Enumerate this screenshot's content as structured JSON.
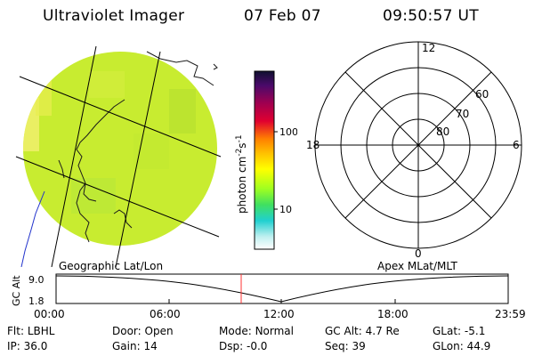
{
  "header": {
    "title": "Ultraviolet Imager",
    "date": "07 Feb 07",
    "time": "09:50:57 UT"
  },
  "colors": {
    "earth_disk": "#c8ec30",
    "earth_speckle": "#e8ee50",
    "bright_patch": "#f2f070",
    "coast": "#1a1a1a",
    "river": "#2233cc",
    "track_marker": "#ff3333"
  },
  "colorbar": {
    "label": "photon cm^-2 s^-1",
    "label_base": "photon cm",
    "label_sup1": "-2",
    "label_mid": "s",
    "label_sup2": "-1",
    "ticks": [
      {
        "text": "100",
        "value": 100
      },
      {
        "text": "10",
        "value": 10
      }
    ],
    "scale": "log",
    "colors_top_to_bottom": [
      "#101030",
      "#4a0a6a",
      "#a00050",
      "#e00030",
      "#ff8000",
      "#ffc000",
      "#ffff00",
      "#a0ff20",
      "#40e060",
      "#20d0d0",
      "#c0f0f0",
      "#ffffff"
    ]
  },
  "polar": {
    "mlt_labels": {
      "top": "12",
      "bottom": "0",
      "left": "18",
      "right": "6"
    },
    "lat_labels": [
      "60",
      "70",
      "80"
    ]
  },
  "maplabels": {
    "left": "Geographic Lat/Lon",
    "right": "Apex MLat/MLT"
  },
  "track": {
    "ylabel": "GC Alt",
    "ytick_top": "9.0",
    "ytick_bottom": "1.8",
    "xticks": [
      "00:00",
      "06:00",
      "12:00",
      "18:00",
      "23:59"
    ],
    "marker_time": "09:50"
  },
  "info": {
    "flt_label": "Flt:",
    "flt_value": "LBHL",
    "ip_label": "IP:",
    "ip_value": "36.0",
    "door_label": "Door:",
    "door_value": "Open",
    "gain_label": "Gain:",
    "gain_value": "14",
    "mode_label": "Mode:",
    "mode_value": "Normal",
    "dsp_label": "Dsp:",
    "dsp_value": "-0.0",
    "gcalt_label": "GC Alt:",
    "gcalt_value": "4.7 Re",
    "seq_label": "Seq:",
    "seq_value": "39",
    "glat_label": "GLat:",
    "glat_value": "-5.1",
    "glon_label": "GLon:",
    "glon_value": "44.9"
  }
}
